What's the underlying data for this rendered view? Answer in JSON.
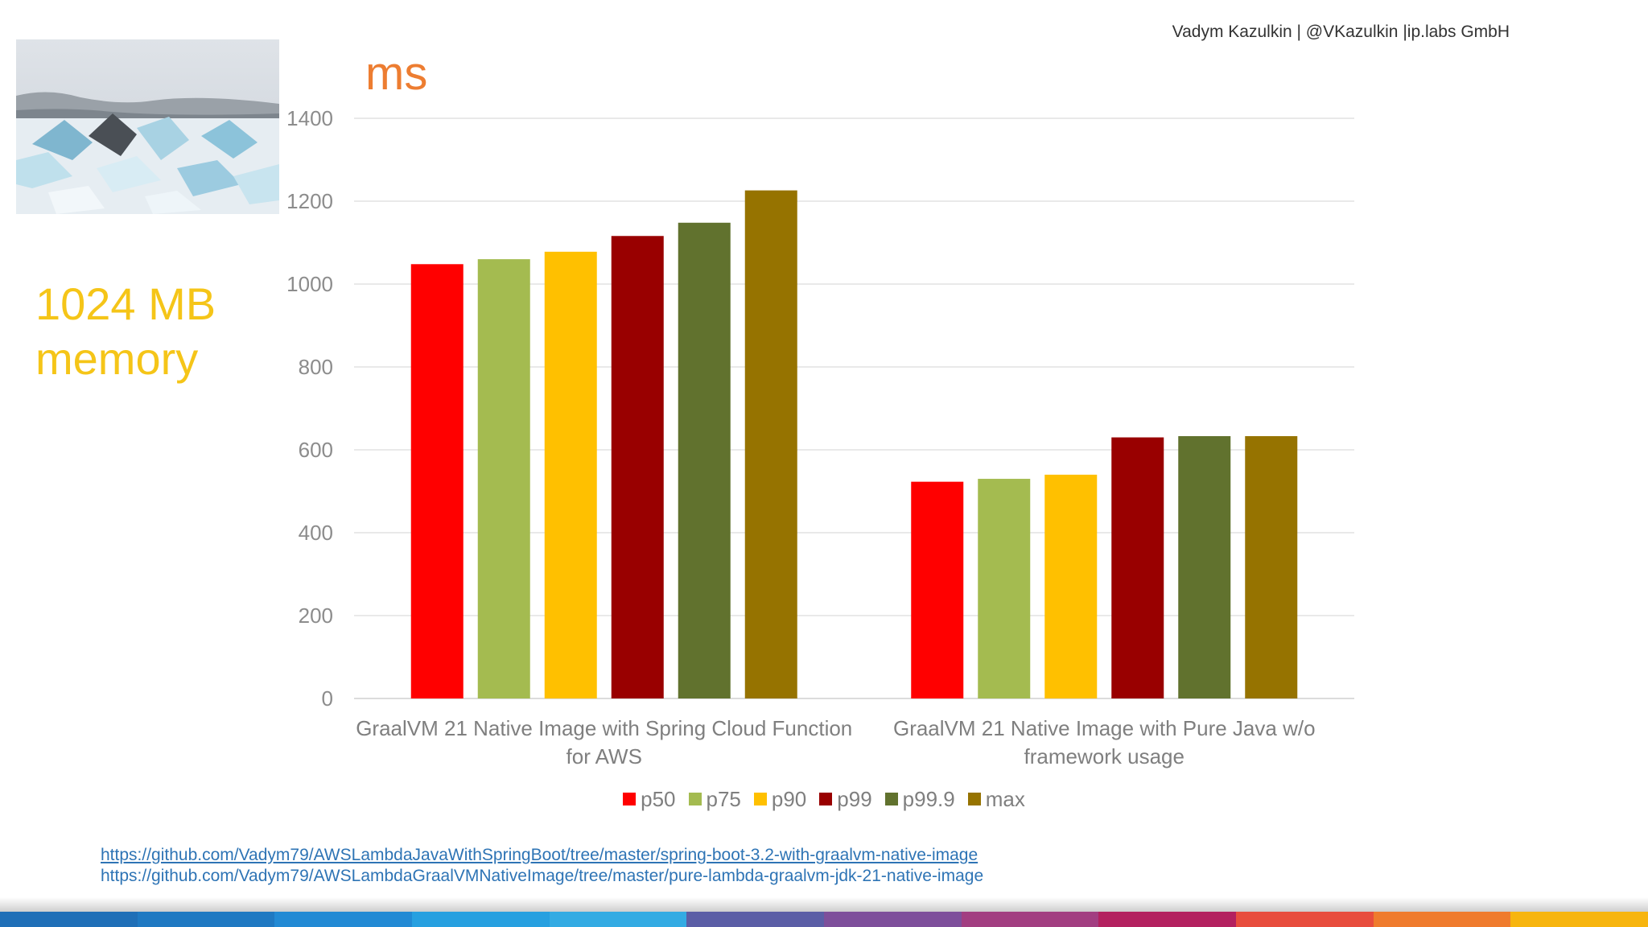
{
  "header": {
    "author": "Vadym Kazulkin | @VKazulkin |ip.labs GmbH"
  },
  "photo": {
    "icon": "iceberg-photo"
  },
  "memory": {
    "line1": "1024 MB",
    "line2": "memory"
  },
  "chart_data": {
    "type": "bar",
    "title": "ms",
    "ylabel": "ms",
    "ylim": [
      0,
      1400
    ],
    "yticks": [
      0,
      200,
      400,
      600,
      800,
      1000,
      1200,
      1400
    ],
    "grid": true,
    "legend_position": "bottom",
    "categories": [
      [
        "GraalVM 21 Native Image with Spring Cloud Function",
        "for AWS"
      ],
      [
        "GraalVM 21 Native Image with Pure Java w/o",
        "framework usage"
      ]
    ],
    "series": [
      {
        "name": "p50",
        "color": "#ff0000",
        "values": [
          1048,
          523
        ]
      },
      {
        "name": "p75",
        "color": "#a4bb50",
        "values": [
          1060,
          530
        ]
      },
      {
        "name": "p90",
        "color": "#ffc000",
        "values": [
          1078,
          540
        ]
      },
      {
        "name": "p99",
        "color": "#990000",
        "values": [
          1116,
          630
        ]
      },
      {
        "name": "p99.9",
        "color": "#61722e",
        "values": [
          1148,
          633
        ]
      },
      {
        "name": "max",
        "color": "#967300",
        "values": [
          1226,
          633
        ]
      }
    ]
  },
  "links": [
    "https://github.com/Vadym79/AWSLambdaJavaWithSpringBoot/tree/master/spring-boot-3.2-with-graalvm-native-image",
    "https://github.com/Vadym79/AWSLambdaGraalVMNativeImage/tree/master/pure-lambda-graalvm-jdk-21-native-image"
  ],
  "footer": {
    "stripe_colors": [
      "#1f6fb7",
      "#1f79c2",
      "#228ad4",
      "#27a0e0",
      "#33abe3",
      "#5b5ea6",
      "#7e4f9b",
      "#a23e81",
      "#b3215f",
      "#e84d3d",
      "#ef7b2d",
      "#f7b50f"
    ]
  }
}
